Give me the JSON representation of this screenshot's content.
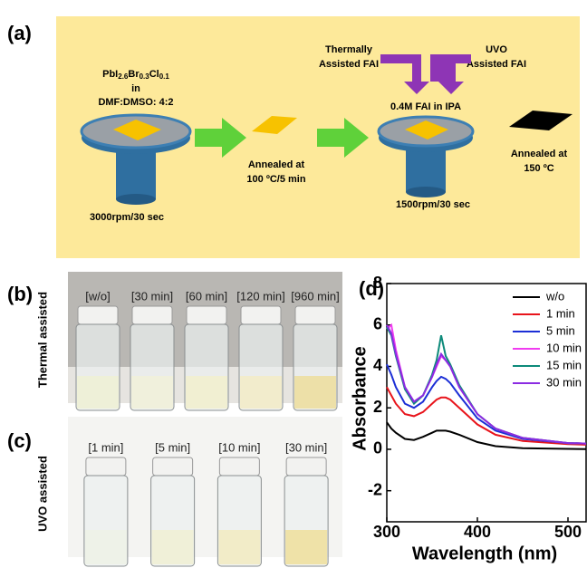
{
  "panel_a": {
    "label": "(a)",
    "formula": [
      "PbI",
      "2.6",
      "Br",
      "0.3",
      "Cl",
      "0.1"
    ],
    "solvent_in": "in",
    "solvent": "DMF:DMSO: 4:2",
    "spin1": "3000rpm/30 sec",
    "anneal1_l1": "Annealed at",
    "anneal1_l2": "100 ºC/5 min",
    "thermal_l1": "Thermally",
    "thermal_l2": "Assisted FAI",
    "uvo_l1": "UVO",
    "uvo_l2": "Assisted FAI",
    "fai": "0.4M FAI in IPA",
    "spin2": "1500rpm/30 sec",
    "anneal2_l1": "Annealed at",
    "anneal2_l2": "150 ºC"
  },
  "panel_b": {
    "label": "(b)",
    "side_label": "Thermal assisted",
    "vials": [
      "[w/o]",
      "[30 min]",
      "[60 min]",
      "[120 min]",
      "[960 min]"
    ]
  },
  "panel_c": {
    "label": "(c)",
    "side_label": "UVO assisted",
    "vials": [
      "[1 min]",
      "[5 min]",
      "[10 min]",
      "[30 min]"
    ]
  },
  "panel_d": {
    "label": "(d)"
  },
  "chart_data": {
    "type": "line",
    "x_label": "Wavelength (nm)",
    "y_label": "Absorbance",
    "x": [
      300,
      305,
      310,
      320,
      330,
      340,
      350,
      355,
      360,
      365,
      370,
      380,
      400,
      420,
      450,
      500,
      520
    ],
    "series": [
      {
        "name": "w/o",
        "color": "#000000",
        "values": [
          1.3,
          1.0,
          0.8,
          0.5,
          0.45,
          0.6,
          0.8,
          0.9,
          0.9,
          0.9,
          0.85,
          0.7,
          0.35,
          0.15,
          0.05,
          0.02,
          0.01
        ]
      },
      {
        "name": "1 min",
        "color": "#e8141b",
        "values": [
          3.0,
          2.6,
          2.2,
          1.7,
          1.6,
          1.8,
          2.2,
          2.4,
          2.5,
          2.5,
          2.4,
          2.0,
          1.2,
          0.7,
          0.4,
          0.25,
          0.22
        ]
      },
      {
        "name": "5 min",
        "color": "#1c2fd6",
        "values": [
          4.1,
          3.6,
          3.0,
          2.2,
          2.0,
          2.3,
          3.0,
          3.3,
          3.5,
          3.4,
          3.2,
          2.6,
          1.5,
          0.9,
          0.5,
          0.3,
          0.28
        ]
      },
      {
        "name": "10 min",
        "color": "#f03cf0",
        "values": [
          5.8,
          6.0,
          4.8,
          3.0,
          2.3,
          2.6,
          3.5,
          4.0,
          4.5,
          4.3,
          4.0,
          3.0,
          1.7,
          1.0,
          0.55,
          0.3,
          0.28
        ]
      },
      {
        "name": "15 min",
        "color": "#0d8a7a",
        "values": [
          5.9,
          5.5,
          4.5,
          2.9,
          2.2,
          2.6,
          3.6,
          4.3,
          5.5,
          4.5,
          4.1,
          3.1,
          1.7,
          1.0,
          0.55,
          0.3,
          0.28
        ]
      },
      {
        "name": "30 min",
        "color": "#8b2be2",
        "values": [
          6.0,
          5.6,
          4.6,
          3.0,
          2.3,
          2.6,
          3.5,
          4.1,
          4.6,
          4.3,
          4.0,
          3.0,
          1.7,
          1.0,
          0.55,
          0.3,
          0.28
        ]
      }
    ],
    "xlim": [
      300,
      520
    ],
    "ylim": [
      -3.5,
      8
    ],
    "xticks": [
      300,
      400,
      500
    ],
    "yticks": [
      -2,
      0,
      2,
      4,
      6,
      8
    ],
    "grid": false,
    "legend": "upper right"
  }
}
